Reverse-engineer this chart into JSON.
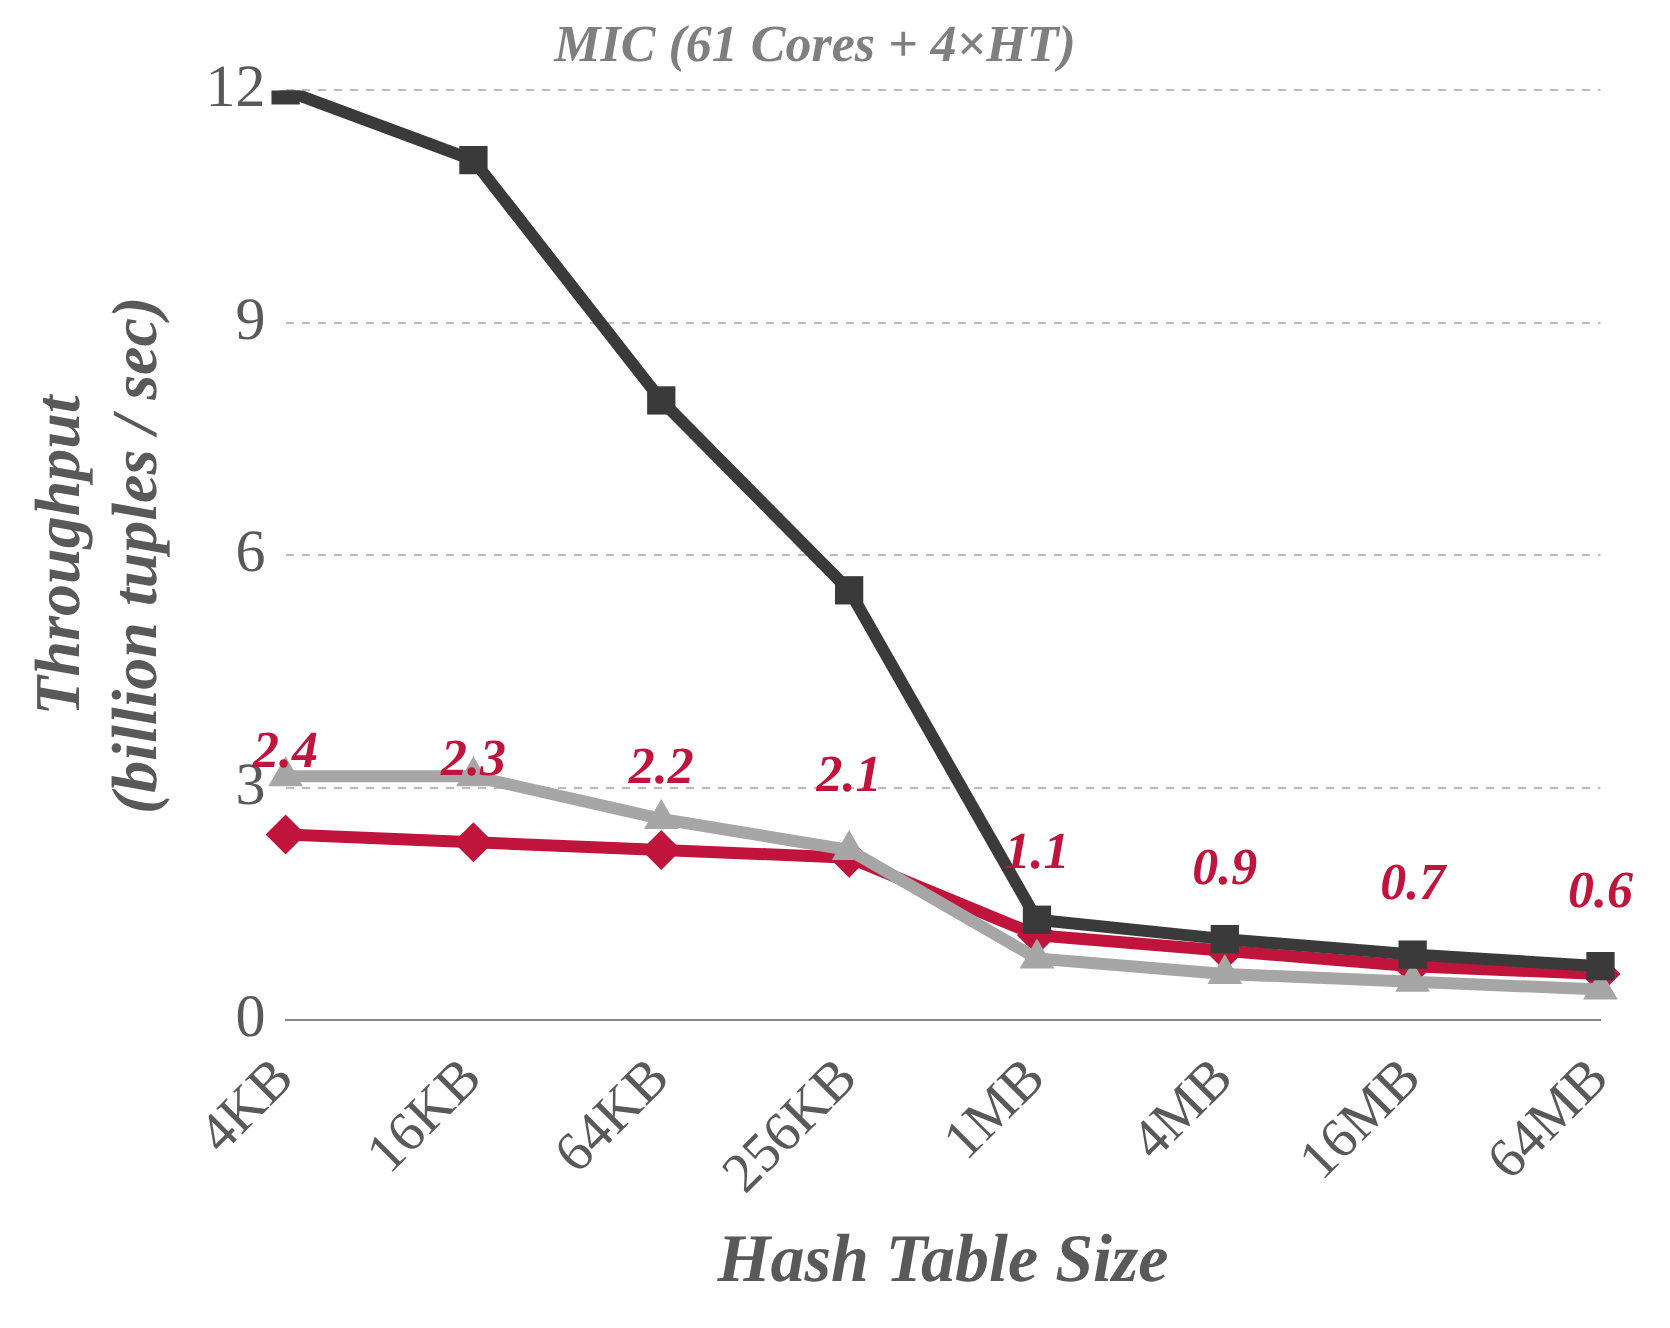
{
  "chart_data": {
    "type": "line",
    "title": "MIC (61 Cores + 4×HT)",
    "xlabel": "Hash Table Size",
    "ylabel": "Throughput\n(billion tuples / sec)",
    "categories": [
      "4KB",
      "16KB",
      "64KB",
      "256KB",
      "1MB",
      "4MB",
      "16MB",
      "64MB"
    ],
    "series": [
      {
        "color": "#3a3a3a",
        "marker": "square",
        "values": [
          12,
          11.1,
          8,
          5.55,
          1.3,
          1.05,
          0.85,
          0.7
        ]
      },
      {
        "color": "#a6a6a6",
        "marker": "triangle",
        "values": [
          3.15,
          3.15,
          2.6,
          2.2,
          0.8,
          0.6,
          0.5,
          0.4
        ]
      },
      {
        "color": "#c0143c",
        "marker": "diamond",
        "values": [
          2.4,
          2.3,
          2.2,
          2.1,
          1.1,
          0.9,
          0.7,
          0.6
        ],
        "value_labels": [
          "2.4",
          "2.3",
          "2.2",
          "2.1",
          "1.1",
          "0.9",
          "0.7",
          "0.6"
        ]
      }
    ],
    "ylim": [
      0,
      12
    ],
    "yticks": [
      0,
      3,
      6,
      9,
      12
    ],
    "grid": "y",
    "line_style": "solid",
    "legend": false
  }
}
